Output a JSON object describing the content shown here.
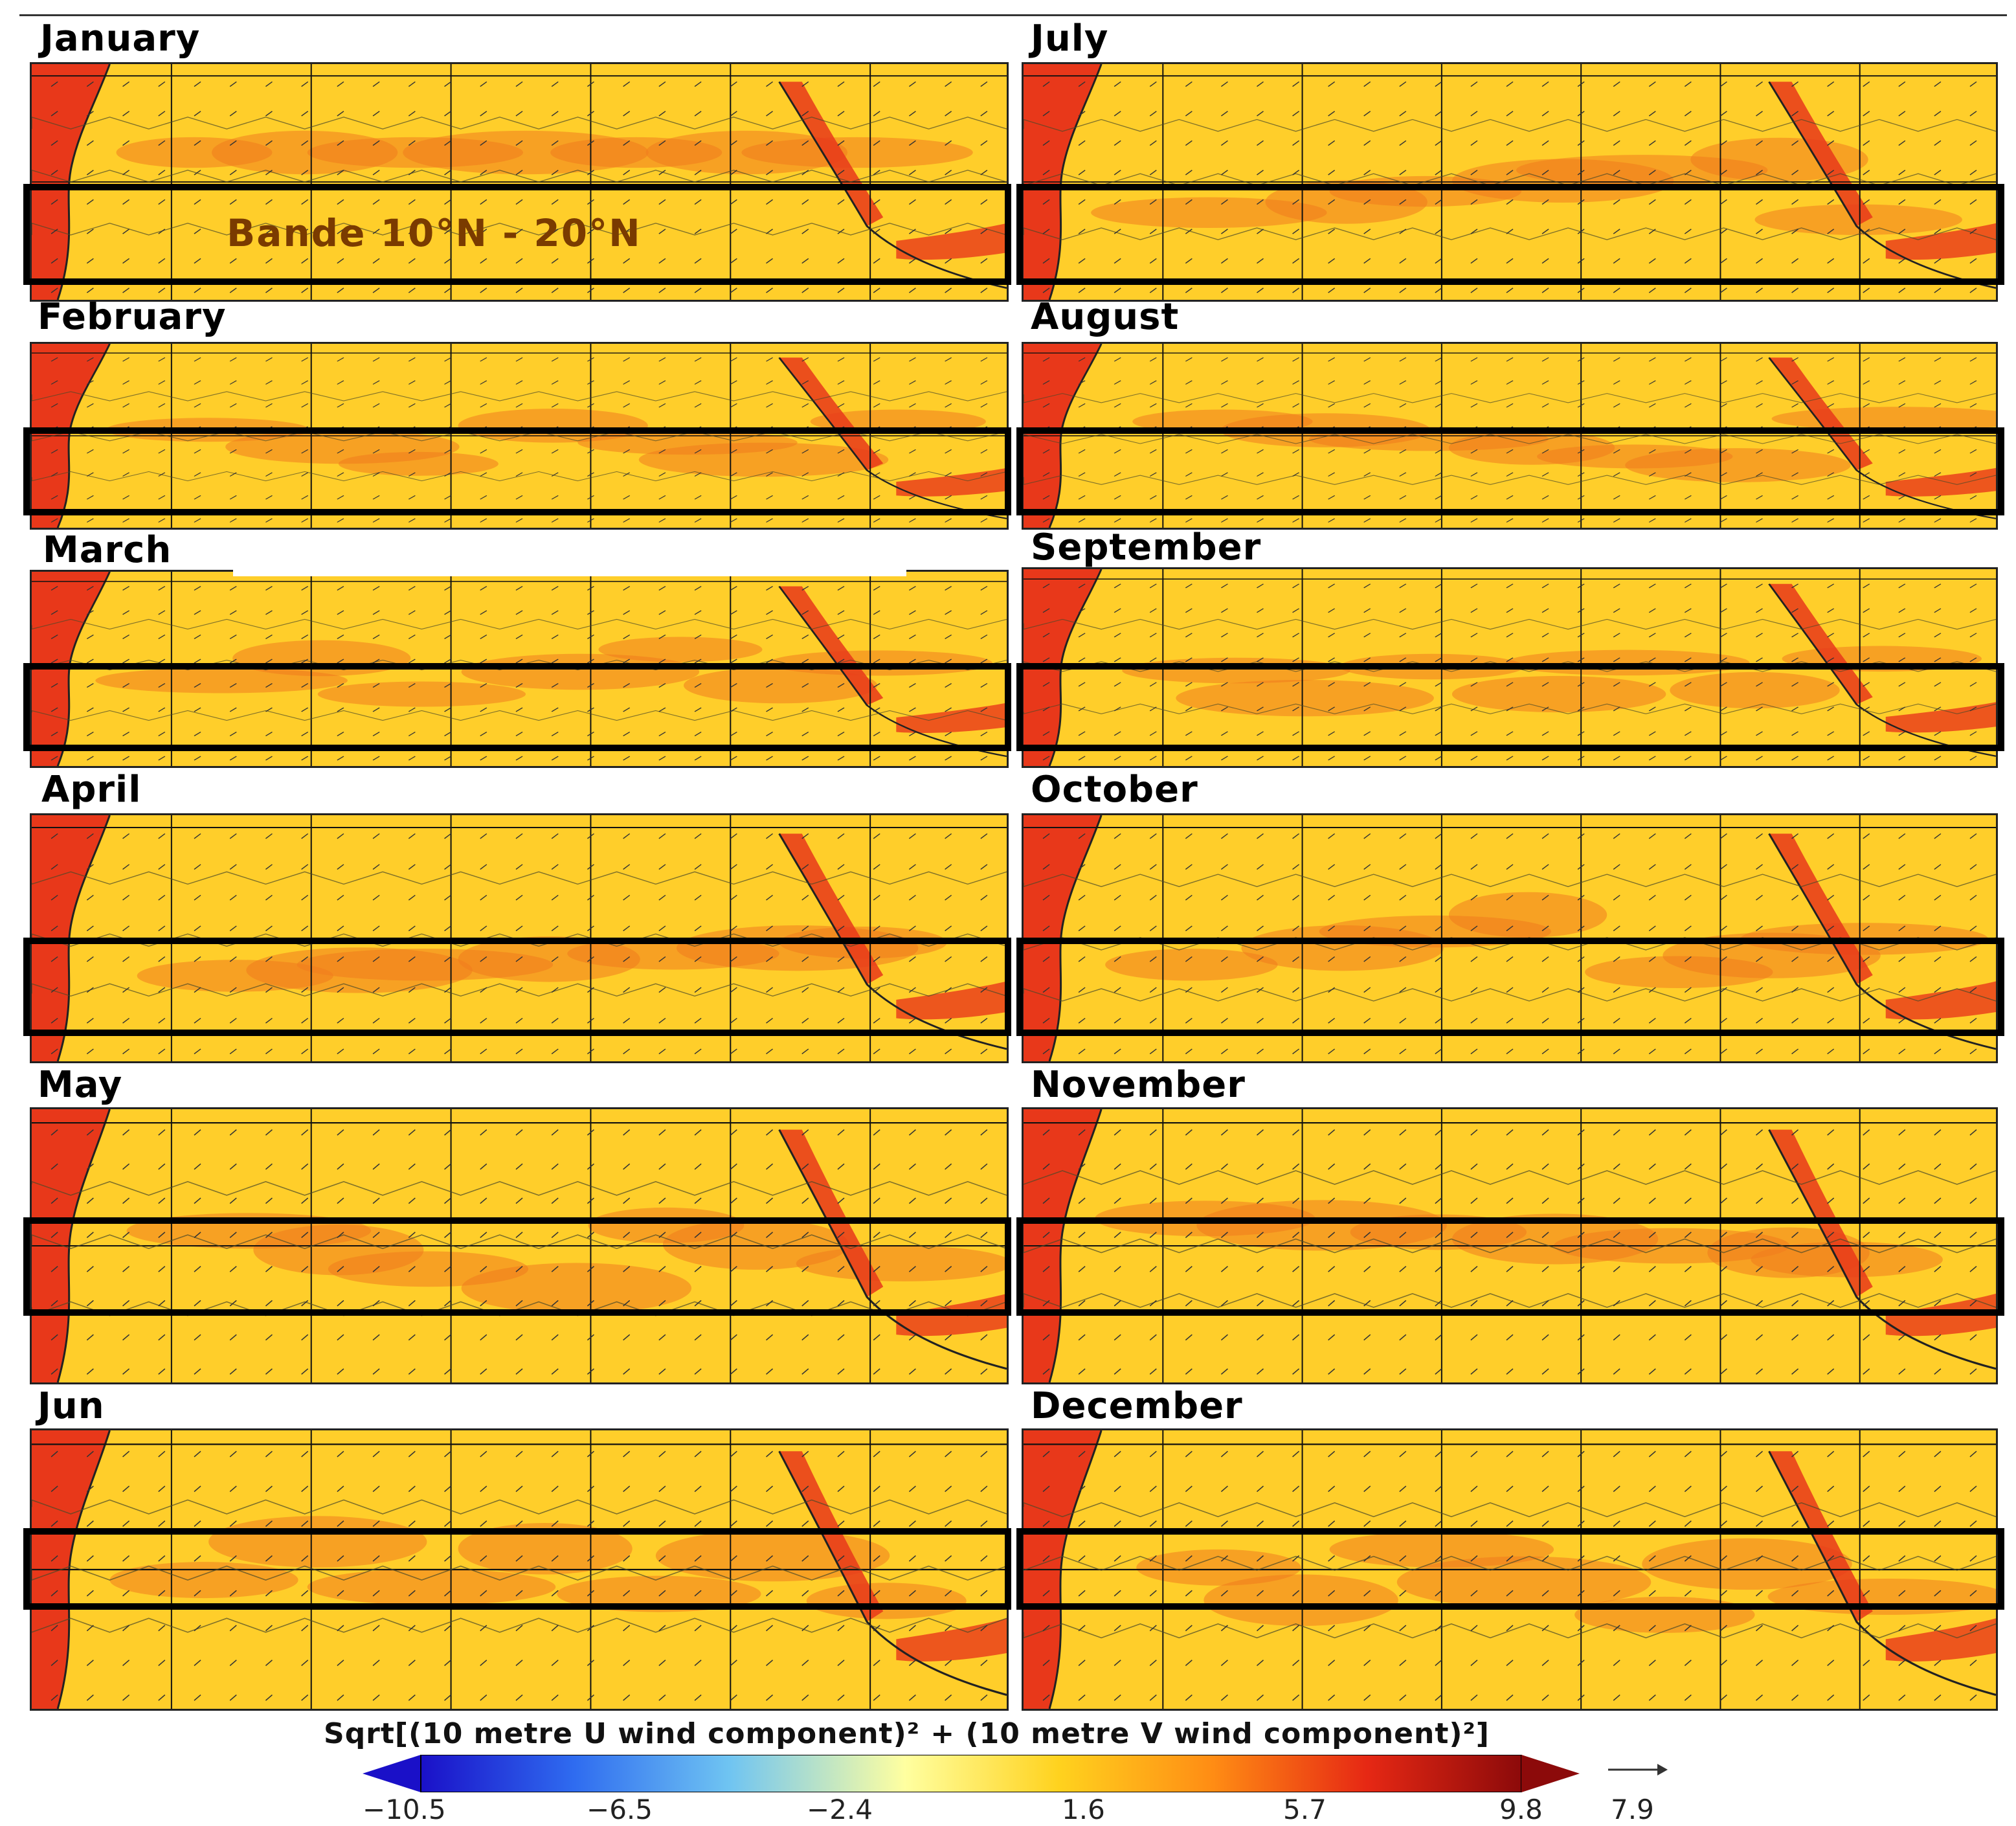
{
  "figure": {
    "months": [
      "January",
      "February",
      "March",
      "April",
      "May",
      "Jun",
      "July",
      "August",
      "September",
      "October",
      "November",
      "December"
    ],
    "band_annotation": "Bande 10°N - 20°N",
    "colorbar": {
      "title": "Sqrt[(10 metre U wind component)² + (10 metre V wind component)²]",
      "ticks": [
        "−10.5",
        "−6.5",
        "−2.4",
        "1.6",
        "5.7",
        "9.8"
      ],
      "min": -10.5,
      "max": 9.8,
      "colors": [
        "#1a10c8",
        "#2f6cf0",
        "#6fc4f2",
        "#ffffa0",
        "#ffd21e",
        "#ff8c14",
        "#e62814",
        "#8c0a0a"
      ]
    },
    "reference_vector": "7.9",
    "colors": {
      "sea": "#e8381a",
      "land_base": "#ffce2a",
      "land_hot": "#f07b1e",
      "band_frame": "#000000"
    }
  }
}
